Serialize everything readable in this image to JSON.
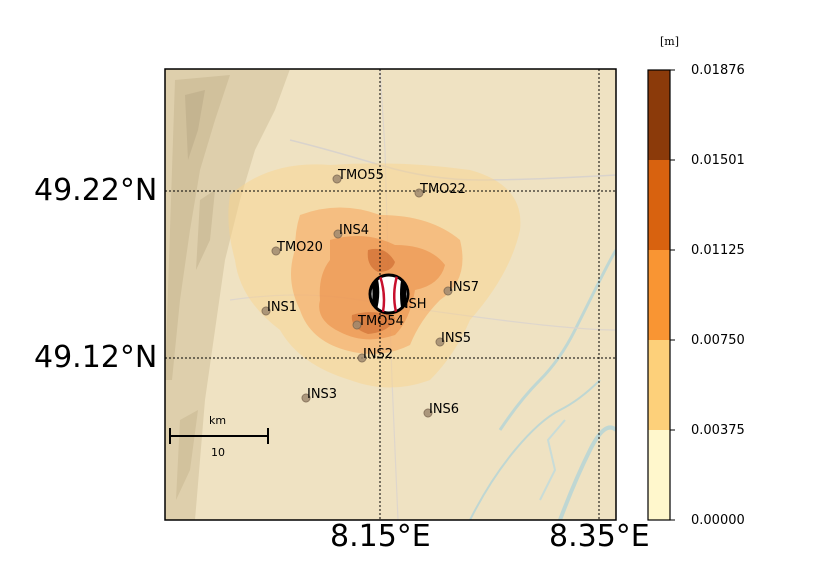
{
  "map": {
    "latitudes": [
      "49.22°N",
      "49.12°N"
    ],
    "longitudes": [
      "8.15°E",
      "8.35°E"
    ]
  },
  "stations": [
    {
      "name": "TMO55"
    },
    {
      "name": "TMO22"
    },
    {
      "name": "INS4"
    },
    {
      "name": "TMO20"
    },
    {
      "name": "INS7"
    },
    {
      "name": "INS1"
    },
    {
      "name": "INSH"
    },
    {
      "name": "TMO54"
    },
    {
      "name": "INS5"
    },
    {
      "name": "INS2"
    },
    {
      "name": "INS3"
    },
    {
      "name": "INS6"
    }
  ],
  "scalebar": {
    "unit": "km",
    "value": "10"
  },
  "colorbar": {
    "unit": "[m]",
    "ticks": [
      "0.01876",
      "0.01501",
      "0.01125",
      "0.00750",
      "0.00375",
      "0.00000"
    ],
    "colors": [
      "#8b3a0a",
      "#d8620f",
      "#f99533",
      "#fdd07a",
      "#fff7cc"
    ]
  },
  "colors": {
    "terrain": "#efe2c2",
    "hills": "#d8caa8",
    "river": "#bfd7d3",
    "beachball_red": "#c8102e"
  }
}
